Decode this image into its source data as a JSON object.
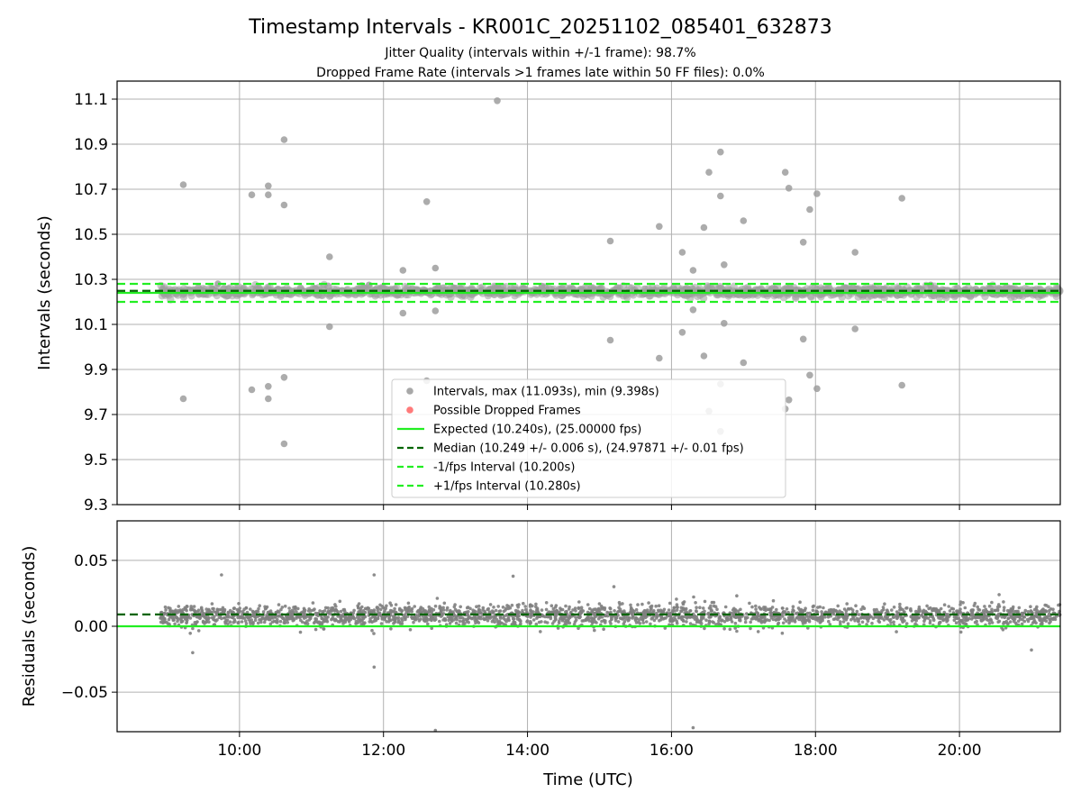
{
  "chart_data": [
    {
      "type": "scatter",
      "panel": "intervals",
      "title": "Timestamp Intervals - KR001C_20251102_085401_632873",
      "subtitle_1": "Jitter Quality (intervals within +/-1 frame): 98.7%",
      "subtitle_2": "Dropped Frame Rate (intervals >1 frames late within 50 FF files): 0.0%",
      "xlabel": "",
      "ylabel": "Intervals (seconds)",
      "x_range_hours": [
        8.3,
        21.4
      ],
      "ylim": [
        9.3,
        11.18
      ],
      "y_ticks": [
        "9.3",
        "9.5",
        "9.7",
        "9.9",
        "10.1",
        "10.3",
        "10.5",
        "10.7",
        "10.9",
        "11.1"
      ],
      "x_ticks": [
        "10:00",
        "12:00",
        "14:00",
        "16:00",
        "18:00",
        "20:00"
      ],
      "grid": true,
      "legend_position": "lower-center",
      "legend": [
        {
          "label": "Intervals, max (11.093s), min (9.398s)",
          "kind": "marker",
          "color": "#9e9e9e"
        },
        {
          "label": "Possible Dropped Frames",
          "kind": "marker",
          "color": "#ff6b6b"
        },
        {
          "label": "Expected (10.240s), (25.00000 fps)",
          "kind": "line",
          "color": "#22ee22"
        },
        {
          "label": "Median (10.249 +/- 0.006 s), (24.97871 +/- 0.01 fps)",
          "kind": "dashed",
          "color": "#006400"
        },
        {
          "label": "-1/fps Interval (10.200s)",
          "kind": "dashed",
          "color": "#22ee22"
        },
        {
          "label": "+1/fps Interval (10.280s)",
          "kind": "dashed",
          "color": "#22ee22"
        }
      ],
      "lines": {
        "expected": 10.24,
        "median": 10.249,
        "minus_fps": 10.2,
        "plus_fps": 10.28
      },
      "band": {
        "x_start": 8.9,
        "x_end": 21.4,
        "y_center": 10.245,
        "y_spread": 0.02
      },
      "outliers": [
        [
          9.22,
          10.72
        ],
        [
          9.22,
          9.77
        ],
        [
          10.17,
          10.675
        ],
        [
          10.17,
          9.81
        ],
        [
          10.4,
          10.715
        ],
        [
          10.4,
          10.675
        ],
        [
          10.4,
          9.825
        ],
        [
          10.4,
          9.77
        ],
        [
          10.62,
          10.92
        ],
        [
          10.62,
          10.63
        ],
        [
          10.62,
          9.865
        ],
        [
          10.62,
          9.57
        ],
        [
          11.25,
          10.4
        ],
        [
          11.25,
          10.09
        ],
        [
          12.27,
          10.34
        ],
        [
          12.27,
          10.15
        ],
        [
          12.6,
          10.645
        ],
        [
          12.6,
          9.85
        ],
        [
          12.72,
          10.35
        ],
        [
          12.72,
          10.16
        ],
        [
          13.58,
          11.093
        ],
        [
          15.15,
          10.47
        ],
        [
          15.15,
          10.03
        ],
        [
          15.83,
          10.535
        ],
        [
          15.83,
          9.95
        ],
        [
          16.15,
          10.42
        ],
        [
          16.15,
          10.065
        ],
        [
          16.3,
          10.34
        ],
        [
          16.3,
          10.165
        ],
        [
          16.45,
          10.53
        ],
        [
          16.45,
          9.96
        ],
        [
          16.52,
          10.775
        ],
        [
          16.52,
          9.715
        ],
        [
          16.68,
          10.865
        ],
        [
          16.68,
          10.67
        ],
        [
          16.68,
          9.835
        ],
        [
          16.68,
          9.625
        ],
        [
          16.73,
          10.365
        ],
        [
          16.73,
          10.105
        ],
        [
          17.0,
          10.56
        ],
        [
          17.0,
          9.93
        ],
        [
          17.58,
          10.775
        ],
        [
          17.58,
          9.725
        ],
        [
          17.63,
          10.705
        ],
        [
          17.63,
          9.765
        ],
        [
          17.83,
          10.465
        ],
        [
          17.83,
          10.035
        ],
        [
          17.92,
          10.61
        ],
        [
          17.92,
          9.875
        ],
        [
          18.02,
          10.68
        ],
        [
          18.02,
          9.815
        ],
        [
          18.55,
          10.42
        ],
        [
          18.55,
          10.08
        ],
        [
          19.2,
          10.66
        ],
        [
          19.2,
          9.83
        ],
        [
          9.7,
          10.28
        ],
        [
          11.8,
          10.275
        ],
        [
          14.2,
          10.27
        ],
        [
          19.6,
          10.275
        ]
      ]
    },
    {
      "type": "scatter",
      "panel": "residuals",
      "xlabel": "Time (UTC)",
      "ylabel": "Residuals (seconds)",
      "x_range_hours": [
        8.3,
        21.4
      ],
      "ylim": [
        -0.08,
        0.08
      ],
      "y_ticks": [
        "−0.05",
        "0.00",
        "0.05"
      ],
      "x_ticks": [
        "10:00",
        "12:00",
        "14:00",
        "16:00",
        "18:00",
        "20:00"
      ],
      "grid": true,
      "lines": {
        "zero": 0.0,
        "median": 0.009
      },
      "band": {
        "x_start": 8.9,
        "x_end": 21.4,
        "y_center": 0.008,
        "y_spread": 0.008
      },
      "outliers": [
        [
          9.75,
          0.039
        ],
        [
          11.87,
          0.039
        ],
        [
          13.8,
          0.038
        ],
        [
          11.87,
          -0.031
        ],
        [
          12.72,
          -0.079
        ],
        [
          16.3,
          -0.077
        ],
        [
          20.55,
          0.024
        ],
        [
          21.0,
          -0.018
        ],
        [
          9.35,
          -0.02
        ],
        [
          15.2,
          0.03
        ]
      ]
    }
  ],
  "colors": {
    "scatter": "#9e9e9e",
    "residual_points": "#808080",
    "expected": "#22ee22",
    "median": "#006400",
    "grid": "#b0b0b0",
    "dropped": "#ff6b6b"
  }
}
